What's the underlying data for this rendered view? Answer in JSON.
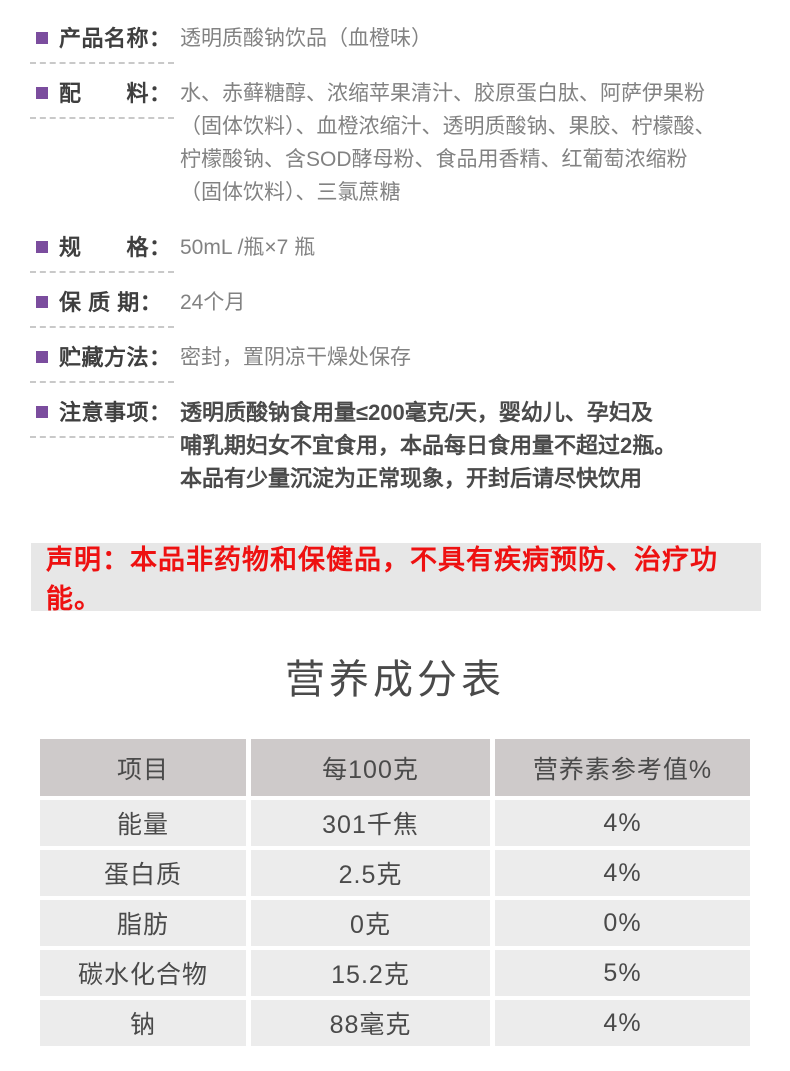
{
  "colors": {
    "bullet": "#7b4d9e",
    "label_text": "#3f3f3f",
    "value_text": "#828282",
    "note_text": "#4a4a4a",
    "disclaimer_text": "#ee1111",
    "disclaimer_bg": "#e7e7e7",
    "table_header_bg": "#cecaca",
    "table_row_bg": "#ececec"
  },
  "info_rows": [
    {
      "label": "产品名称：",
      "lines": [
        "透明质酸钠饮品（血橙味）"
      ]
    },
    {
      "label": "配　　料：",
      "lines": [
        "水、赤藓糖醇、浓缩苹果清汁、胶原蛋白肽、阿萨伊果粉",
        "（固体饮料）、血橙浓缩汁、透明质酸钠、果胶、柠檬酸、",
        "柠檬酸钠、含SOD酵母粉、食品用香精、红葡萄浓缩粉",
        "（固体饮料）、三氯蔗糖"
      ]
    },
    {
      "label": "规　　格：",
      "lines": [
        "50mL /瓶×7 瓶"
      ]
    },
    {
      "label": "保 质 期：",
      "lines": [
        "24个月"
      ]
    },
    {
      "label": "贮藏方法：",
      "lines": [
        "密封，置阴凉干燥处保存"
      ]
    },
    {
      "label": "注意事项：",
      "lines": [
        "透明质酸钠食用量≤200毫克/天，婴幼儿、孕妇及",
        "哺乳期妇女不宜食用，本品每日食用量不超过2瓶。",
        "本品有少量沉淀为正常现象，开封后请尽快饮用"
      ]
    }
  ],
  "disclaimer": "声明：本品非药物和保健品，不具有疾病预防、治疗功能。",
  "nutrition": {
    "title": "营养成分表",
    "headers": [
      "项目",
      "每100克",
      "营养素参考值%"
    ],
    "rows": [
      [
        "能量",
        "301千焦",
        "4%"
      ],
      [
        "蛋白质",
        "2.5克",
        "4%"
      ],
      [
        "脂肪",
        "0克",
        "0%"
      ],
      [
        "碳水化合物",
        "15.2克",
        "5%"
      ],
      [
        "钠",
        "88毫克",
        "4%"
      ]
    ]
  }
}
